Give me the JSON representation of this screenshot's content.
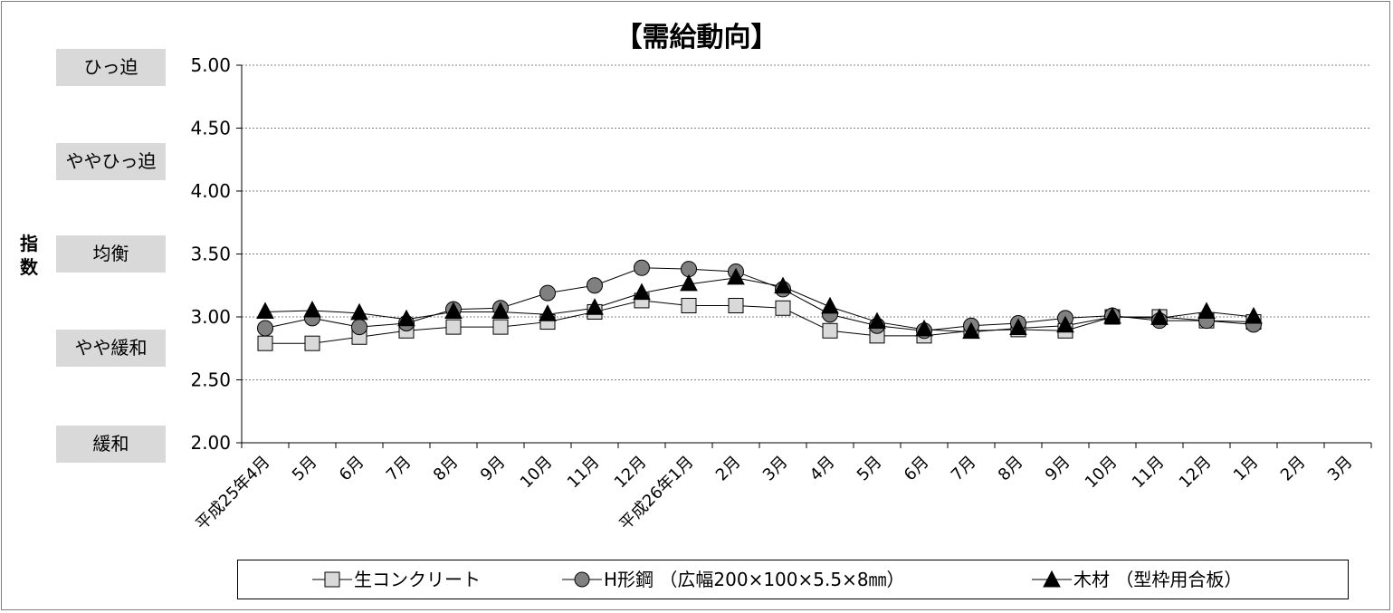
{
  "title": "【需給動向】",
  "ylabel_chars": [
    "指",
    "数"
  ],
  "bands": [
    "ひっ迫",
    "ややひっ迫",
    "均衡",
    "やや緩和",
    "緩和"
  ],
  "legend": {
    "s1": "生コンクリート",
    "s2": "H形鋼 （広幅200×100×5.5×8㎜）",
    "s3": "木材 （型枠用合板）"
  },
  "chart_data": {
    "type": "line",
    "title": "【需給動向】",
    "ylabel": "指数",
    "xlabel": "",
    "ylim": [
      2.0,
      5.0
    ],
    "yticks": [
      "5.00",
      "4.50",
      "4.00",
      "3.50",
      "3.00",
      "2.50",
      "2.00"
    ],
    "grid": true,
    "legend_position": "bottom",
    "categories": [
      "平成25年4月",
      "5月",
      "6月",
      "7月",
      "8月",
      "9月",
      "10月",
      "11月",
      "12月",
      "平成26年1月",
      "2月",
      "3月",
      "4月",
      "5月",
      "6月",
      "7月",
      "8月",
      "9月",
      "10月",
      "11月",
      "12月",
      "1月",
      "2月",
      "3月"
    ],
    "series": [
      {
        "name": "生コンクリート",
        "marker": "square",
        "color": "#d9d9d9",
        "values": [
          2.79,
          2.79,
          2.84,
          2.89,
          2.92,
          2.92,
          2.96,
          3.04,
          3.13,
          3.09,
          3.09,
          3.07,
          2.89,
          2.85,
          2.85,
          2.89,
          2.9,
          2.89,
          3.0,
          3.0,
          2.97,
          2.96,
          null,
          null
        ]
      },
      {
        "name": "H形鋼 （広幅200×100×5.5×8㎜）",
        "marker": "circle",
        "color": "#808080",
        "values": [
          2.91,
          2.99,
          2.92,
          2.95,
          3.06,
          3.07,
          3.19,
          3.25,
          3.39,
          3.38,
          3.36,
          3.22,
          3.02,
          2.93,
          2.89,
          2.93,
          2.95,
          2.99,
          3.01,
          2.97,
          2.97,
          2.94,
          null,
          null
        ]
      },
      {
        "name": "木材 （型枠用合板）",
        "marker": "triangle",
        "color": "#000000",
        "values": [
          3.04,
          3.05,
          3.03,
          2.98,
          3.04,
          3.04,
          3.02,
          3.07,
          3.19,
          3.26,
          3.31,
          3.24,
          3.08,
          2.96,
          2.9,
          2.88,
          2.91,
          2.93,
          3.0,
          2.99,
          3.04,
          3.0,
          null,
          null
        ]
      }
    ]
  }
}
